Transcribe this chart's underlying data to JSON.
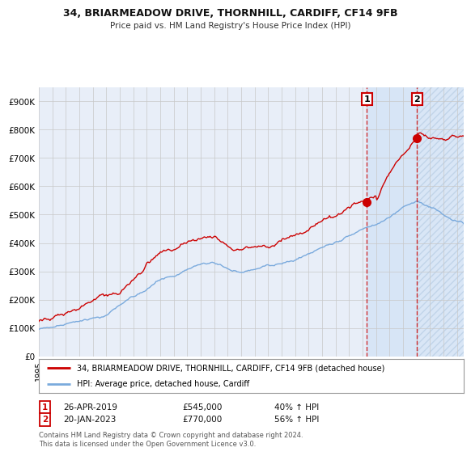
{
  "title1": "34, BRIARMEADOW DRIVE, THORNHILL, CARDIFF, CF14 9FB",
  "title2": "Price paid vs. HM Land Registry's House Price Index (HPI)",
  "ylabel_ticks": [
    "£0",
    "£100K",
    "£200K",
    "£300K",
    "£400K",
    "£500K",
    "£600K",
    "£700K",
    "£800K",
    "£900K"
  ],
  "ytick_values": [
    0,
    100000,
    200000,
    300000,
    400000,
    500000,
    600000,
    700000,
    800000,
    900000
  ],
  "ylim": [
    0,
    950000
  ],
  "xlim_start": 1995.0,
  "xlim_end": 2026.5,
  "red_line_color": "#cc0000",
  "blue_line_color": "#7aaadd",
  "background_color": "#ffffff",
  "plot_bg_color": "#e8eef8",
  "grid_color": "#c8c8c8",
  "sale1_x": 2019.32,
  "sale1_y": 545000,
  "sale2_x": 2023.05,
  "sale2_y": 770000,
  "shade_between_color": "#dce8f5",
  "shade_after_color": "#dce8f5",
  "legend_label_red": "34, BRIARMEADOW DRIVE, THORNHILL, CARDIFF, CF14 9FB (detached house)",
  "legend_label_blue": "HPI: Average price, detached house, Cardiff",
  "table_row1": [
    "1",
    "26-APR-2019",
    "£545,000",
    "40% ↑ HPI"
  ],
  "table_row2": [
    "2",
    "20-JAN-2023",
    "£770,000",
    "56% ↑ HPI"
  ],
  "footnote": "Contains HM Land Registry data © Crown copyright and database right 2024.\nThis data is licensed under the Open Government Licence v3.0."
}
